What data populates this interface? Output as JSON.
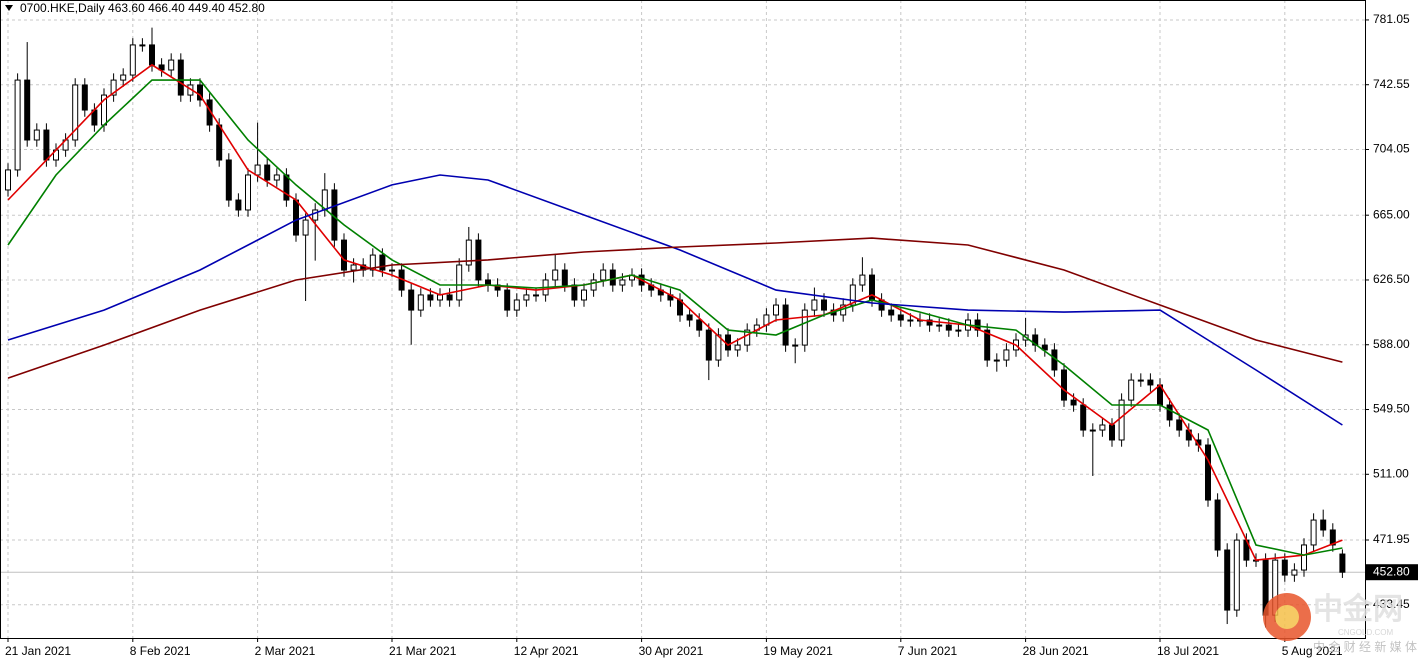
{
  "chart_data": {
    "type": "candlestick",
    "title": "0700.HKE,Daily  463.60 466.40 449.40 452.80",
    "ylim": [
      413.7,
      792.9
    ],
    "yticks": [
      781.05,
      742.55,
      704.05,
      {
        "value": 665,
        "label": "665.00"
      },
      {
        "value": 626.5,
        "label": "626.50"
      },
      {
        "value": 588,
        "label": "588.00"
      },
      {
        "value": 549.5,
        "label": "549.50"
      },
      {
        "value": 511,
        "label": "511.00"
      },
      471.95,
      433.45
    ],
    "grid": true,
    "up_color": "#ffffff",
    "down_color": "#000000",
    "current_price": {
      "value": 452.8,
      "label": "452.80"
    },
    "categories": [
      "21 Jan 2021",
      null,
      null,
      null,
      null,
      null,
      null,
      null,
      null,
      null,
      null,
      null,
      null,
      "8 Feb 2021",
      null,
      null,
      null,
      null,
      null,
      null,
      null,
      null,
      null,
      null,
      null,
      null,
      "2 Mar 2021",
      null,
      null,
      null,
      null,
      null,
      null,
      null,
      null,
      null,
      null,
      null,
      null,
      null,
      "21 Mar 2021",
      null,
      null,
      null,
      null,
      null,
      null,
      null,
      null,
      null,
      null,
      null,
      null,
      "12 Apr 2021",
      null,
      null,
      null,
      null,
      null,
      null,
      null,
      null,
      null,
      null,
      null,
      null,
      "30 Apr 2021",
      null,
      null,
      null,
      null,
      null,
      null,
      null,
      null,
      null,
      null,
      null,
      null,
      "19 May 2021",
      null,
      null,
      null,
      null,
      null,
      null,
      null,
      null,
      null,
      null,
      null,
      null,
      null,
      "7 Jun 2021",
      null,
      null,
      null,
      null,
      null,
      null,
      null,
      null,
      null,
      null,
      null,
      null,
      "28 Jun 2021",
      null,
      null,
      null,
      null,
      null,
      null,
      null,
      null,
      null,
      null,
      null,
      null,
      null,
      "18 Jul 2021",
      null,
      null,
      null,
      null,
      null,
      null,
      null,
      null,
      null,
      null,
      null,
      null,
      "5 Aug 2021",
      null,
      null,
      null,
      null,
      null,
      null
    ],
    "candles": [
      [
        680.0,
        695.9,
        676.0,
        691.9
      ],
      [
        691.9,
        749.3,
        687.9,
        745.3
      ],
      [
        745.3,
        767.9,
        705.7,
        709.7
      ],
      [
        709.7,
        719.6,
        705.7,
        715.6
      ],
      [
        715.6,
        719.6,
        693.8,
        697.8
      ],
      [
        697.8,
        707.7,
        693.8,
        703.7
      ],
      [
        703.7,
        713.7,
        699.7,
        709.7
      ],
      [
        709.7,
        746.4,
        705.7,
        742.4
      ],
      [
        742.4,
        746.4,
        723.5,
        727.5
      ],
      [
        727.5,
        731.5,
        714.6,
        718.6
      ],
      [
        718.6,
        740.4,
        714.6,
        736.4
      ],
      [
        736.4,
        749.3,
        732.4,
        745.3
      ],
      [
        745.3,
        752.3,
        741.3,
        748.3
      ],
      [
        748.3,
        770.2,
        744.3,
        766.2
      ],
      [
        766.2,
        770.2,
        762.2,
        766.2
      ],
      [
        766.2,
        776.5,
        750.3,
        754.3
      ],
      [
        754.3,
        758.3,
        747.3,
        751.3
      ],
      [
        751.3,
        761.2,
        747.3,
        757.2
      ],
      [
        757.2,
        761.2,
        732.4,
        736.4
      ],
      [
        736.4,
        746.4,
        732.4,
        742.4
      ],
      [
        742.4,
        746.4,
        729.5,
        733.5
      ],
      [
        733.5,
        737.5,
        714.6,
        718.6
      ],
      [
        718.6,
        722.6,
        693.8,
        697.8
      ],
      [
        697.8,
        701.8,
        670.0,
        674.0
      ],
      [
        674.0,
        678.0,
        664.1,
        668.1
      ],
      [
        668.1,
        692.9,
        664.1,
        688.9
      ],
      [
        688.9,
        720.0,
        684.9,
        694.8
      ],
      [
        694.8,
        698.8,
        681.9,
        685.9
      ],
      [
        685.9,
        692.9,
        681.9,
        688.9
      ],
      [
        688.9,
        692.9,
        670.0,
        674.0
      ],
      [
        674.0,
        678.0,
        649.2,
        653.2
      ],
      [
        653.2,
        666.1,
        614.0,
        662.1
      ],
      [
        662.1,
        672.1,
        638.0,
        668.1
      ],
      [
        668.1,
        690.0,
        664.1,
        680.0
      ],
      [
        680.0,
        684.0,
        646.2,
        650.2
      ],
      [
        650.2,
        654.2,
        628.4,
        632.4
      ],
      [
        632.4,
        639.4,
        625.0,
        635.4
      ],
      [
        635.4,
        639.4,
        628.4,
        632.4
      ],
      [
        632.4,
        645.3,
        628.4,
        641.3
      ],
      [
        641.3,
        645.3,
        628.4,
        632.4
      ],
      [
        632.4,
        636.4,
        628.4,
        632.4
      ],
      [
        632.4,
        636.4,
        616.5,
        620.5
      ],
      [
        620.5,
        624.5,
        588.0,
        608.6
      ],
      [
        608.6,
        621.6,
        604.6,
        617.6
      ],
      [
        617.6,
        621.6,
        610.6,
        614.6
      ],
      [
        614.6,
        621.6,
        610.6,
        617.6
      ],
      [
        617.6,
        621.6,
        610.6,
        614.6
      ],
      [
        614.6,
        639.4,
        610.6,
        635.4
      ],
      [
        635.4,
        658.0,
        631.4,
        650.2
      ],
      [
        650.2,
        654.2,
        622.5,
        626.5
      ],
      [
        626.5,
        630.5,
        619.5,
        623.5
      ],
      [
        623.5,
        627.5,
        616.5,
        620.5
      ],
      [
        620.5,
        624.5,
        604.6,
        608.6
      ],
      [
        608.6,
        618.6,
        604.6,
        614.6
      ],
      [
        614.6,
        621.6,
        610.6,
        617.6
      ],
      [
        617.6,
        621.6,
        613.6,
        617.6
      ],
      [
        617.6,
        630.5,
        613.6,
        626.5
      ],
      [
        626.5,
        642.0,
        622.5,
        632.4
      ],
      [
        632.4,
        636.4,
        619.5,
        623.5
      ],
      [
        623.5,
        627.5,
        610.6,
        614.6
      ],
      [
        614.6,
        624.5,
        610.6,
        620.5
      ],
      [
        620.5,
        630.5,
        616.5,
        626.5
      ],
      [
        626.5,
        636.4,
        622.5,
        632.4
      ],
      [
        632.4,
        636.4,
        619.5,
        623.5
      ],
      [
        623.5,
        630.5,
        619.5,
        626.5
      ],
      [
        626.5,
        633.4,
        622.5,
        629.4
      ],
      [
        629.4,
        633.4,
        619.5,
        623.5
      ],
      [
        623.5,
        627.5,
        616.5,
        620.5
      ],
      [
        620.5,
        624.5,
        613.6,
        617.6
      ],
      [
        617.6,
        621.6,
        610.6,
        614.6
      ],
      [
        614.6,
        618.6,
        601.7,
        605.7
      ],
      [
        605.7,
        609.7,
        598.7,
        602.7
      ],
      [
        602.7,
        606.7,
        592.7,
        596.7
      ],
      [
        596.7,
        600.7,
        567.0,
        578.9
      ],
      [
        578.9,
        597.8,
        574.9,
        593.8
      ],
      [
        593.8,
        597.8,
        580.9,
        584.9
      ],
      [
        584.9,
        591.8,
        580.9,
        587.8
      ],
      [
        587.8,
        600.7,
        583.8,
        596.7
      ],
      [
        596.7,
        603.7,
        592.7,
        599.7
      ],
      [
        599.7,
        609.7,
        595.7,
        605.7
      ],
      [
        605.7,
        615.6,
        601.7,
        611.6
      ],
      [
        611.6,
        615.6,
        583.8,
        587.8
      ],
      [
        587.8,
        591.8,
        577.0,
        587.8
      ],
      [
        587.8,
        612.6,
        583.8,
        608.6
      ],
      [
        608.6,
        622.0,
        604.6,
        614.6
      ],
      [
        614.6,
        618.6,
        604.6,
        608.6
      ],
      [
        608.6,
        612.6,
        601.7,
        605.7
      ],
      [
        605.7,
        615.6,
        601.7,
        611.6
      ],
      [
        611.6,
        627.5,
        607.6,
        623.5
      ],
      [
        623.5,
        640.0,
        619.5,
        629.4
      ],
      [
        629.4,
        633.4,
        610.6,
        614.6
      ],
      [
        614.6,
        618.6,
        604.6,
        608.6
      ],
      [
        608.6,
        612.6,
        601.7,
        605.7
      ],
      [
        605.7,
        609.7,
        598.7,
        602.7
      ],
      [
        602.7,
        606.7,
        598.7,
        602.7
      ],
      [
        602.7,
        606.7,
        598.7,
        602.7
      ],
      [
        602.7,
        606.7,
        595.7,
        599.7
      ],
      [
        599.7,
        603.7,
        595.7,
        599.7
      ],
      [
        599.7,
        603.7,
        592.7,
        596.7
      ],
      [
        596.7,
        600.7,
        592.7,
        596.7
      ],
      [
        596.7,
        606.7,
        592.7,
        602.7
      ],
      [
        602.7,
        606.7,
        592.7,
        596.7
      ],
      [
        596.7,
        600.7,
        574.9,
        578.9
      ],
      [
        578.9,
        582.9,
        572.0,
        578.9
      ],
      [
        578.9,
        588.9,
        574.9,
        584.9
      ],
      [
        584.9,
        594.8,
        580.9,
        590.8
      ],
      [
        590.8,
        604.0,
        586.8,
        593.8
      ],
      [
        593.8,
        597.8,
        583.8,
        587.8
      ],
      [
        587.8,
        591.8,
        580.9,
        584.9
      ],
      [
        584.9,
        588.9,
        569.0,
        573.0
      ],
      [
        573.0,
        577.0,
        551.1,
        555.1
      ],
      [
        555.1,
        559.1,
        548.2,
        552.2
      ],
      [
        552.2,
        556.2,
        533.3,
        537.3
      ],
      [
        537.3,
        541.3,
        510.0,
        537.3
      ],
      [
        537.3,
        544.3,
        533.3,
        540.3
      ],
      [
        540.3,
        544.3,
        527.4,
        531.4
      ],
      [
        531.4,
        559.1,
        527.4,
        555.1
      ],
      [
        555.1,
        571.0,
        551.1,
        567.0
      ],
      [
        567.0,
        571.0,
        563.0,
        567.0
      ],
      [
        567.0,
        571.0,
        560.1,
        564.1
      ],
      [
        564.1,
        568.1,
        548.2,
        552.2
      ],
      [
        552.2,
        556.2,
        539.3,
        543.3
      ],
      [
        543.3,
        547.3,
        533.3,
        537.3
      ],
      [
        537.3,
        541.3,
        527.4,
        531.4
      ],
      [
        531.4,
        535.4,
        524.4,
        528.4
      ],
      [
        528.4,
        532.4,
        491.7,
        495.7
      ],
      [
        495.7,
        499.7,
        462.0,
        466.0
      ],
      [
        466.0,
        470.0,
        422.0,
        430.3
      ],
      [
        430.3,
        475.9,
        426.3,
        471.9
      ],
      [
        471.9,
        475.9,
        456.0,
        460.0
      ],
      [
        460.0,
        464.0,
        456.0,
        460.0
      ],
      [
        460.0,
        464.0,
        420.0,
        427.3
      ],
      [
        427.3,
        464.0,
        423.3,
        460.0
      ],
      [
        460.0,
        464.0,
        447.1,
        451.1
      ],
      [
        451.1,
        458.1,
        447.1,
        454.1
      ],
      [
        454.1,
        473.0,
        450.1,
        469.0
      ],
      [
        469.0,
        487.8,
        465.0,
        483.8
      ],
      [
        483.8,
        490.0,
        473.9,
        477.9
      ],
      [
        477.9,
        481.9,
        465.0,
        469.0
      ],
      [
        463.6,
        466.4,
        449.4,
        452.8
      ]
    ],
    "lines": [
      {
        "color": "#e00000",
        "x": [
          0,
          5,
          10,
          15,
          20,
          25,
          30,
          35,
          40,
          45,
          50,
          55,
          60,
          65,
          70,
          75,
          80,
          85,
          90,
          95,
          100,
          105,
          110,
          115,
          120,
          125,
          130,
          135,
          139
        ],
        "values": [
          674.0,
          703.7,
          733.5,
          754.3,
          736.4,
          691.9,
          674.0,
          638.4,
          629.4,
          617.6,
          623.5,
          620.5,
          623.5,
          629.4,
          614.6,
          587.8,
          602.7,
          605.7,
          617.6,
          602.7,
          599.7,
          587.8,
          561.1,
          540.3,
          564.1,
          519.5,
          460.0,
          463.0,
          471.9
        ]
      },
      {
        "color": "#008000",
        "x": [
          0,
          5,
          10,
          15,
          20,
          25,
          30,
          35,
          40,
          45,
          50,
          55,
          60,
          65,
          70,
          75,
          80,
          85,
          90,
          95,
          100,
          105,
          110,
          115,
          120,
          125,
          130,
          135,
          139
        ],
        "values": [
          647.3,
          688.9,
          718.6,
          745.3,
          745.3,
          709.7,
          683.0,
          659.2,
          638.4,
          623.5,
          623.5,
          621.7,
          623.5,
          629.4,
          620.5,
          596.7,
          593.8,
          605.7,
          614.6,
          607.4,
          599.7,
          596.7,
          575.9,
          552.2,
          552.2,
          537.3,
          469.0,
          463.0,
          467.2
        ]
      },
      {
        "color": "#0000b0",
        "x": [
          0,
          10,
          20,
          30,
          40,
          45,
          50,
          60,
          70,
          80,
          90,
          100,
          110,
          120,
          125,
          130,
          139
        ],
        "values": [
          590.8,
          608.6,
          632.4,
          662.1,
          683.0,
          688.9,
          685.9,
          665.1,
          644.3,
          620.5,
          612.8,
          608.6,
          607.4,
          608.6,
          590.8,
          573.0,
          540.3
        ]
      },
      {
        "color": "#800000",
        "x": [
          0,
          10,
          20,
          30,
          40,
          50,
          60,
          70,
          80,
          90,
          100,
          110,
          120,
          130,
          139
        ],
        "values": [
          568.2,
          587.8,
          608.6,
          626.5,
          635.4,
          638.4,
          643.1,
          646.1,
          648.5,
          651.4,
          647.3,
          632.4,
          611.6,
          590.8,
          577.7
        ]
      }
    ],
    "watermark": {
      "text": "中金网",
      "url": "CNGOLD.COM",
      "tagline": "中 金 财 经 新 媒 体"
    }
  }
}
